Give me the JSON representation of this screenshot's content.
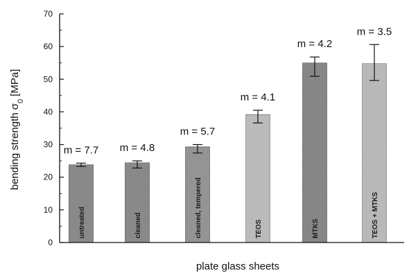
{
  "chart_data": {
    "type": "bar",
    "categories": [
      "untreated",
      "cleaned",
      "cleaned, tempered",
      "TEOS",
      "MTKS",
      "TEOS + MTKS"
    ],
    "values": [
      23.8,
      24.5,
      29.3,
      39.2,
      55.0,
      54.8
    ],
    "errors": [
      {
        "low": 23.3,
        "high": 24.3
      },
      {
        "low": 22.8,
        "high": 25.0
      },
      {
        "low": 27.4,
        "high": 30.0
      },
      {
        "low": 36.6,
        "high": 40.5
      },
      {
        "low": 50.9,
        "high": 56.8
      },
      {
        "low": 49.6,
        "high": 60.6
      }
    ],
    "annotations": [
      "m = 7.7",
      "m = 4.8",
      "m = 5.7",
      "m = 4.1",
      "m = 4.2",
      "m = 3.5"
    ],
    "xlabel": "plate glass sheets",
    "ylabel_main": "bending strength σ",
    "ylabel_sub": "0",
    "ylabel_unit": "[MPa]",
    "ylim": [
      0,
      70
    ],
    "yticks": [
      0,
      10,
      20,
      30,
      40,
      50,
      60,
      70
    ],
    "bar_colors": [
      "#8f8f8f",
      "#8f8f8f",
      "#9a9a9a",
      "#c2c2c2",
      "#8c8c8c",
      "#c0c0c0"
    ],
    "grid": false,
    "legend": "none"
  }
}
